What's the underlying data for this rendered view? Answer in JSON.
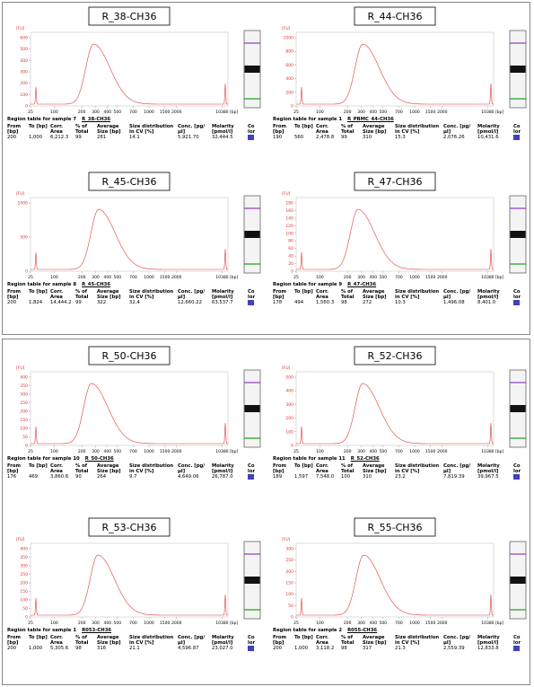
{
  "y_unit": "[FU]",
  "x_unit": "[bp]",
  "x_ticks": [
    25,
    100,
    200,
    300,
    400,
    500,
    700,
    1000,
    1500,
    2000,
    10380
  ],
  "table_headers": [
    "From [bp]",
    "To [bp]",
    "Corr. Area",
    "% of Total",
    "Average Size [bp]",
    "Size distribution in CV [%]",
    "Conc. [pg/µl]",
    "Molarity [pmol/l]",
    "Co lor"
  ],
  "panels": [
    {
      "title": "R_38-CH36",
      "yticks": [
        0,
        100,
        200,
        300,
        400,
        500,
        600
      ],
      "caption": "Region table for sample 7",
      "sample": "R_38-CH36",
      "row": [
        "200",
        "1,000",
        "6,212.3",
        "99",
        "281",
        "14.1",
        "5,921.70",
        "32,444.5"
      ]
    },
    {
      "title": "R_44-CH36",
      "yticks": [
        0,
        200,
        400,
        600,
        800,
        1000
      ],
      "caption": "Region table for sample 1",
      "sample": "R_PBMC_44-CH36",
      "row": [
        "190",
        "560",
        "2,478.8",
        "99",
        "310",
        "15.3",
        "2,076.26",
        "10,431.6"
      ]
    },
    {
      "title": "R_45-CH36",
      "yticks": [
        0,
        500,
        1000
      ],
      "caption": "Region table for sample 8",
      "sample": "R_45-CH36",
      "row": [
        "200",
        "1,824",
        "14,444.2",
        "99",
        "322",
        "32.4",
        "12,660.22",
        "63,537.7"
      ]
    },
    {
      "title": "R_47-CH36",
      "yticks": [
        0,
        20,
        40,
        60,
        80,
        100,
        120,
        140,
        160,
        180
      ],
      "caption": "Region table for sample 9",
      "sample": "R_47-CH36",
      "row": [
        "178",
        "494",
        "1,560.3",
        "98",
        "272",
        "10.3",
        "1,496.08",
        "8,401.0"
      ]
    },
    {
      "title": "R_50-CH36",
      "yticks": [
        0,
        50,
        100,
        150,
        200,
        250,
        300,
        350,
        400
      ],
      "caption": "Region table for sample 10",
      "sample": "R_50-CH36",
      "row": [
        "176",
        "469",
        "3,860.6",
        "90",
        "264",
        "9.7",
        "4,649.06",
        "26,787.0"
      ]
    },
    {
      "title": "R_52-CH36",
      "yticks": [
        0,
        100,
        200,
        300,
        400,
        500
      ],
      "caption": "Region table for sample 11",
      "sample": "R_52-CH36",
      "row": [
        "189",
        "1,597",
        "7,548.0",
        "100",
        "310",
        "23.2",
        "7,819.39",
        "39,967.5"
      ]
    },
    {
      "title": "R_53-CH36",
      "yticks": [
        0,
        50,
        100,
        150,
        200,
        250,
        300,
        350,
        400
      ],
      "caption": "Region table for sample 1",
      "sample": "R053-CH36",
      "row": [
        "200",
        "1,000",
        "5,305.6",
        "98",
        "316",
        "21.1",
        "4,596.87",
        "23,027.0"
      ]
    },
    {
      "title": "R_55-CH36",
      "yticks": [
        0,
        50,
        100,
        150,
        200,
        250,
        300
      ],
      "caption": "Region table for sample 2",
      "sample": "R055-CH36",
      "row": [
        "200",
        "1,000",
        "3,118.2",
        "98",
        "317",
        "21.3",
        "2,559.39",
        "12,833.8"
      ]
    }
  ]
}
